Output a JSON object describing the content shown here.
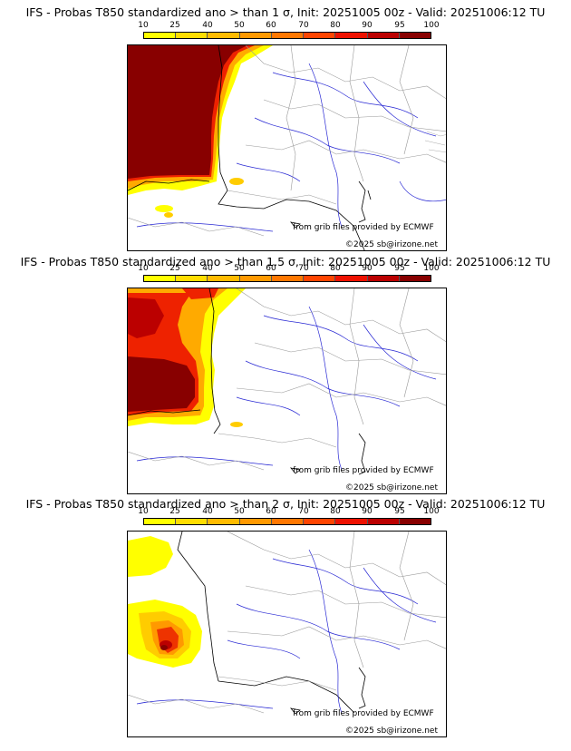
{
  "colorbar": {
    "ticks": [
      "10",
      "25",
      "40",
      "50",
      "60",
      "70",
      "80",
      "90",
      "95",
      "100"
    ],
    "colors": [
      "#ffff00",
      "#ffdd00",
      "#ffbb00",
      "#ff9900",
      "#ff7700",
      "#ff4400",
      "#ee1100",
      "#bb0000",
      "#880000"
    ]
  },
  "panels": [
    {
      "title": "IFS - Probas T850  standardized ano > than 1 σ, Init: 20251005 00z - Valid: 20251006:12 TU",
      "source": "from grib files provided by ECMWF",
      "copyright": "©2025 sb@irizone.net",
      "sigma": 1
    },
    {
      "title": "IFS - Probas T850  standardized ano > than 1.5 σ, Init: 20251005 00z - Valid: 20251006:12 TU",
      "source": "from grib files provided by ECMWF",
      "copyright": "©2025 sb@irizone.net",
      "sigma": 1.5
    },
    {
      "title": "IFS - Probas T850  standardized ano > than 2 σ, Init: 20251005 00z - Valid: 20251006:12 TU",
      "source": "from grib files provided by ECMWF",
      "copyright": "©2025 sb@irizone.net",
      "sigma": 2
    }
  ]
}
